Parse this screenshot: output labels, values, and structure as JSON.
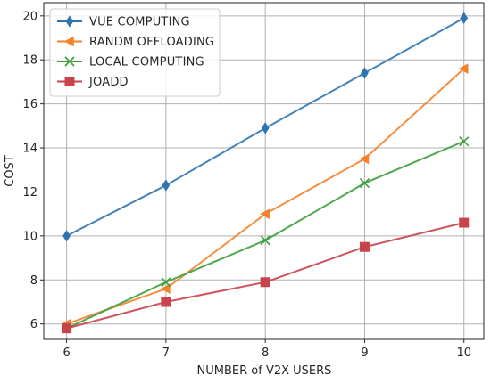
{
  "chart_data": {
    "type": "line",
    "title": "",
    "xlabel": "NUMBER of V2X USERS",
    "ylabel": "COST",
    "x": [
      6,
      7,
      8,
      9,
      10
    ],
    "xlim": [
      5.77,
      10.2
    ],
    "ylim": [
      5.3,
      20.6
    ],
    "xticks": [
      6,
      7,
      8,
      9,
      10
    ],
    "yticks": [
      6,
      8,
      10,
      12,
      14,
      16,
      18,
      20
    ],
    "grid": true,
    "legend_position": "top-left",
    "series": [
      {
        "name": "VUE COMPUTING",
        "values": [
          10.0,
          12.3,
          14.9,
          17.4,
          19.9
        ],
        "color": "#2e74b1",
        "marker": "diamond"
      },
      {
        "name": "RANDM OFFLOADING",
        "values": [
          6.0,
          7.6,
          11.0,
          13.5,
          17.6
        ],
        "color": "#f5822a",
        "marker": "triangle-left"
      },
      {
        "name": "LOCAL COMPUTING",
        "values": [
          5.8,
          7.9,
          9.8,
          12.4,
          14.3
        ],
        "color": "#3c9e3c",
        "marker": "x"
      },
      {
        "name": "JOADD",
        "values": [
          5.8,
          7.0,
          7.9,
          9.5,
          10.6
        ],
        "color": "#c8434a",
        "marker": "square"
      }
    ]
  }
}
